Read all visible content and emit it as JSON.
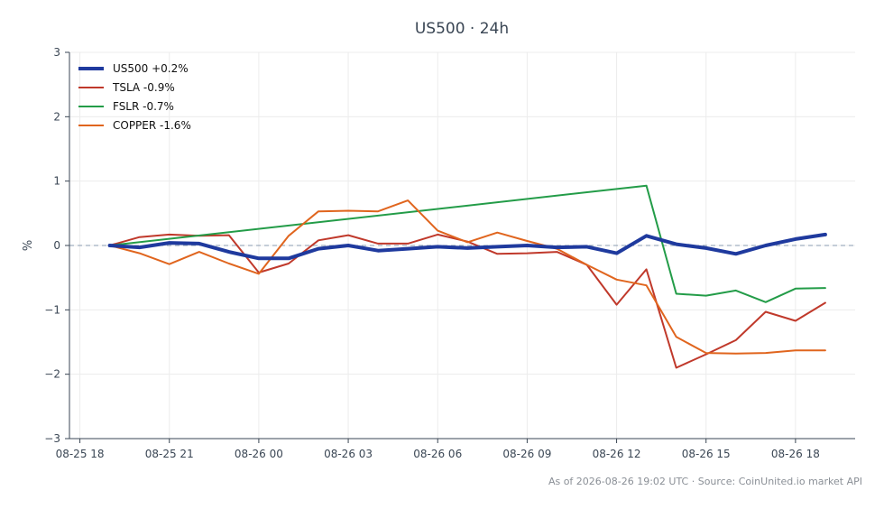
{
  "chart_data": {
    "type": "line",
    "title": "US500 · 24h",
    "ylabel": "%",
    "xlabel": "",
    "ylim": [
      -3,
      3
    ],
    "xlim": [
      -0.35,
      26.0
    ],
    "yticks": [
      3,
      2,
      1,
      0,
      -1,
      -2,
      -3
    ],
    "ytick_labels": [
      "3",
      "2",
      "1",
      "0",
      "−1",
      "−2",
      "−3"
    ],
    "xticks": [
      {
        "x": 0,
        "label": "08-25 18"
      },
      {
        "x": 3,
        "label": "08-25 21"
      },
      {
        "x": 6,
        "label": "08-26 00"
      },
      {
        "x": 9,
        "label": "08-26 03"
      },
      {
        "x": 12,
        "label": "08-26 06"
      },
      {
        "x": 15,
        "label": "08-26 09"
      },
      {
        "x": 18,
        "label": "08-26 12"
      },
      {
        "x": 21,
        "label": "08-26 15"
      },
      {
        "x": 24,
        "label": "08-26 18"
      }
    ],
    "grid": true,
    "legend_position": "top-left",
    "zero_line": true,
    "series": [
      {
        "name": "US500 +0.2%",
        "color": "#1f3a9e",
        "width": 4,
        "x": [
          1,
          2,
          3,
          4,
          5,
          6,
          7,
          8,
          9,
          10,
          11,
          12,
          13,
          14,
          15,
          16,
          17,
          18,
          19,
          20,
          21,
          22,
          23,
          24,
          25
        ],
        "y": [
          0.0,
          -0.03,
          0.04,
          0.03,
          -0.1,
          -0.2,
          -0.2,
          -0.05,
          0.0,
          -0.08,
          -0.05,
          -0.02,
          -0.04,
          -0.02,
          0.0,
          -0.03,
          -0.02,
          -0.12,
          0.15,
          0.02,
          -0.04,
          -0.13,
          0.0,
          0.1,
          0.17
        ]
      },
      {
        "name": "TSLA -0.9%",
        "color": "#c0392b",
        "width": 2,
        "x": [
          1,
          2,
          3,
          4,
          5,
          6,
          7,
          8,
          9,
          10,
          11,
          12,
          13,
          14,
          15,
          16,
          17,
          18,
          19,
          20,
          21,
          22,
          23,
          24,
          25
        ],
        "y": [
          0.0,
          0.13,
          0.17,
          0.15,
          0.16,
          -0.42,
          -0.28,
          0.08,
          0.16,
          0.03,
          0.03,
          0.17,
          0.06,
          -0.13,
          -0.12,
          -0.1,
          -0.3,
          -0.92,
          -0.37,
          -1.9,
          -1.69,
          -1.47,
          -1.03,
          -1.17,
          -0.89
        ]
      },
      {
        "name": "FSLR -0.7%",
        "color": "#239c48",
        "width": 2,
        "x": [
          1,
          19,
          20,
          21,
          22,
          23,
          24,
          25
        ],
        "y": [
          0.0,
          0.93,
          -0.75,
          -0.78,
          -0.7,
          -0.88,
          -0.67,
          -0.66
        ]
      },
      {
        "name": "COPPER -1.6%",
        "color": "#e0651e",
        "width": 2,
        "x": [
          1,
          2,
          3,
          4,
          5,
          6,
          7,
          8,
          9,
          10,
          11,
          12,
          13,
          14,
          15,
          16,
          17,
          18,
          19,
          20,
          21,
          22,
          23,
          24,
          25
        ],
        "y": [
          0.0,
          -0.12,
          -0.29,
          -0.1,
          -0.28,
          -0.44,
          0.15,
          0.53,
          0.54,
          0.53,
          0.7,
          0.23,
          0.05,
          0.2,
          0.07,
          -0.05,
          -0.3,
          -0.53,
          -0.62,
          -1.42,
          -1.67,
          -1.68,
          -1.67,
          -1.63,
          -1.63
        ]
      }
    ]
  },
  "footer": "As of 2026-08-26 19:02 UTC · Source: CoinUnited.io market API"
}
